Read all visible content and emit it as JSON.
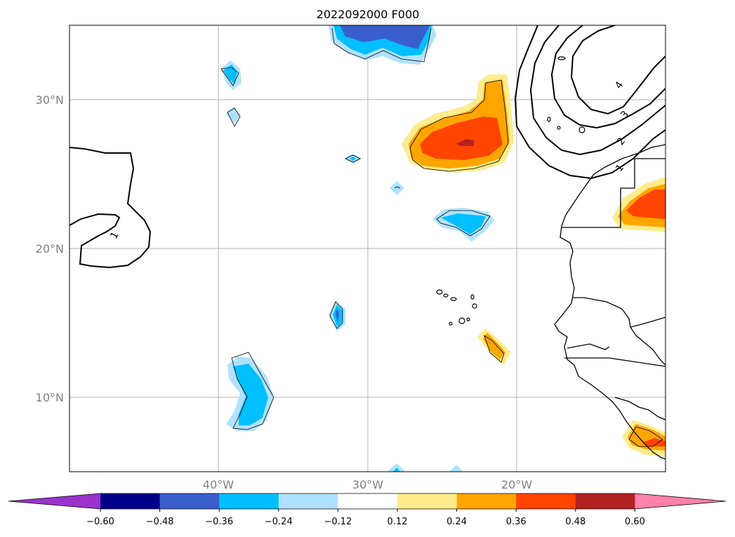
{
  "title": "2022092000 F000",
  "map": {
    "lat_labels": [
      "30°N",
      "20°N",
      "10°N"
    ],
    "lon_labels": [
      "40°W",
      "30°W",
      "20°W"
    ],
    "contour_labels": [
      "1",
      "1",
      "2",
      "3",
      "4"
    ]
  },
  "colorbar": {
    "ticks": [
      "−0.60",
      "−0.48",
      "−0.36",
      "−0.24",
      "−0.12",
      "0.12",
      "0.24",
      "0.36",
      "0.48",
      "0.60"
    ],
    "colors": [
      "#9933cc",
      "#00008b",
      "#3a5fcd",
      "#00bfff",
      "#b0e2ff",
      "#ffffff",
      "#ffec8b",
      "#ffa500",
      "#ff4500",
      "#b22222",
      "#ff82ab"
    ]
  }
}
